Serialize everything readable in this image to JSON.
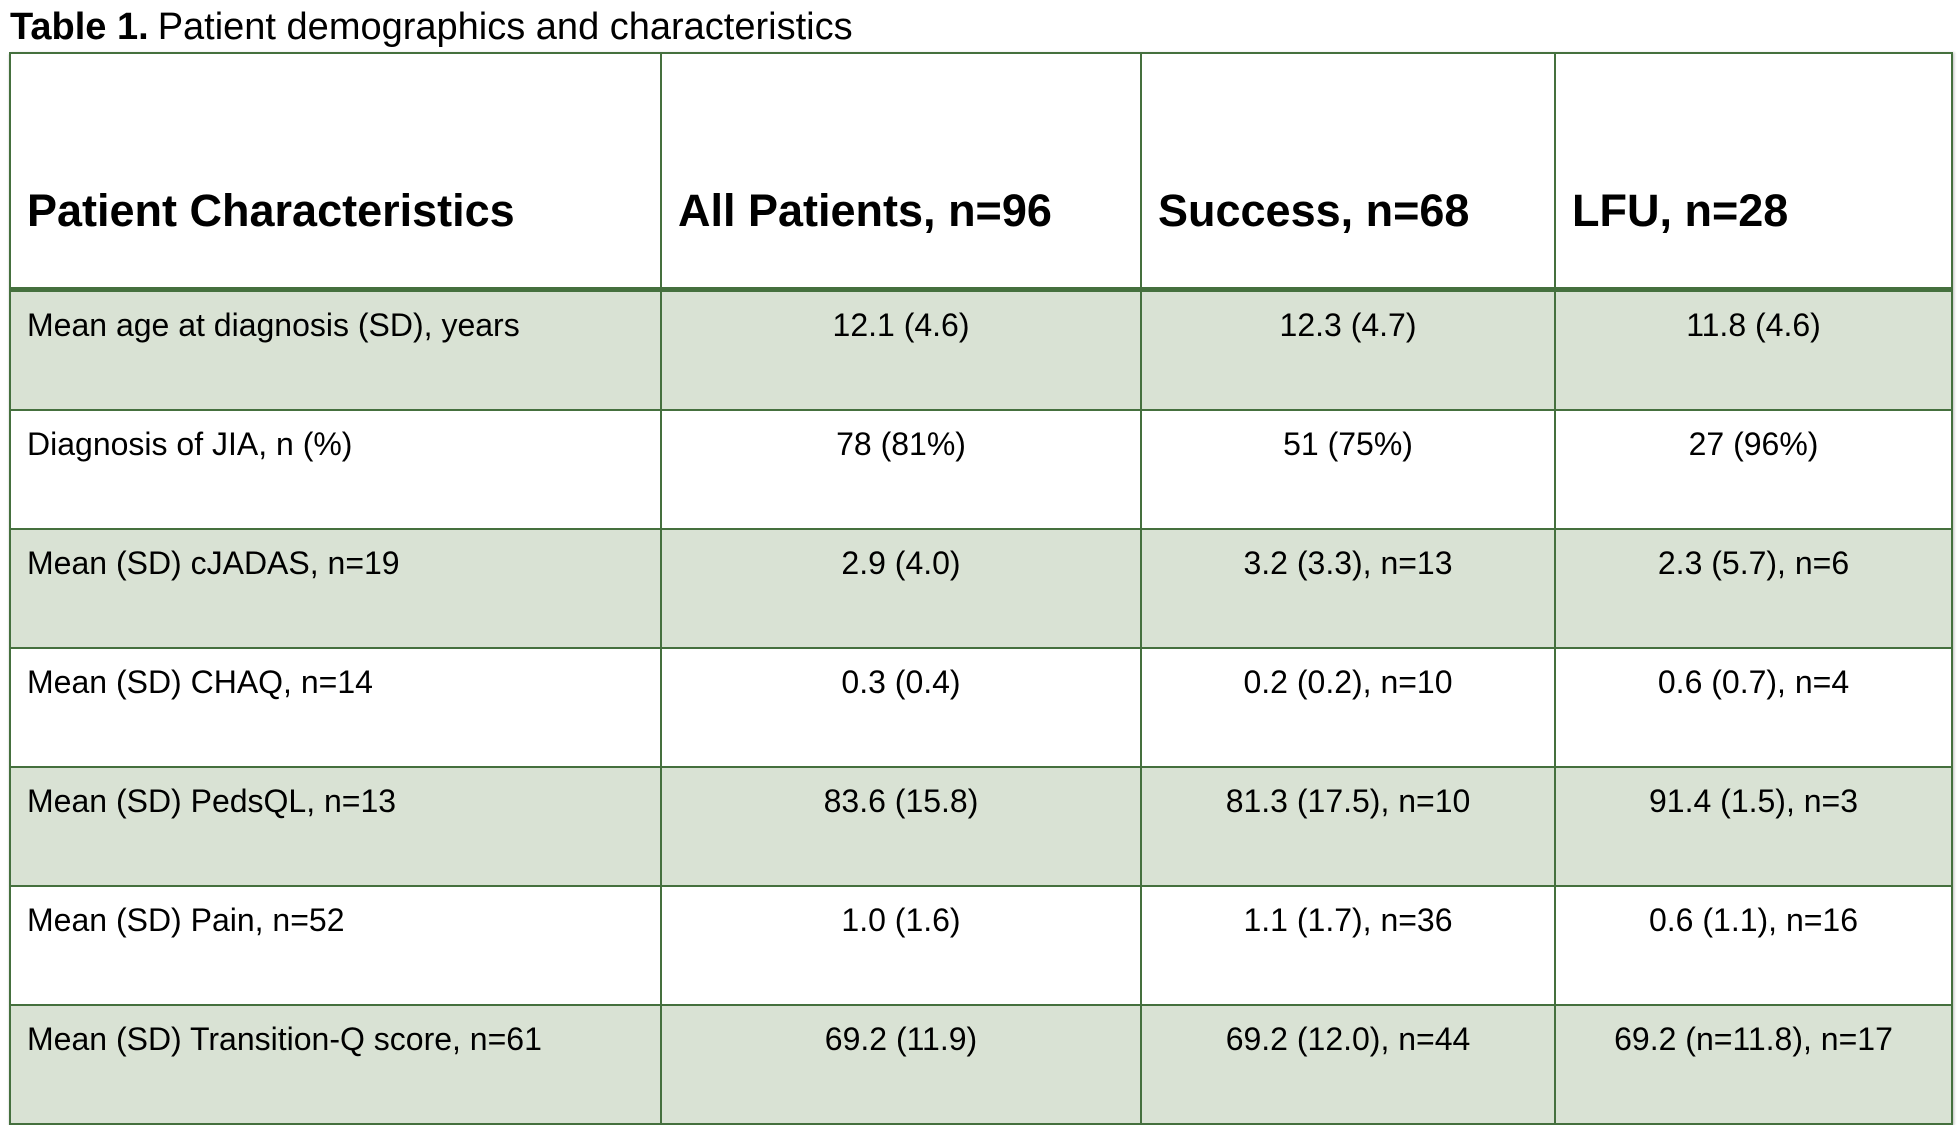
{
  "caption": {
    "prefix": "Table 1.",
    "text": "Patient demographics and characteristics"
  },
  "table": {
    "columns": [
      {
        "label": "Patient Characteristics"
      },
      {
        "label": "All Patients, n=96"
      },
      {
        "label": "Success, n=68"
      },
      {
        "label": "LFU, n=28"
      }
    ],
    "rows": [
      {
        "label": "Mean age at diagnosis (SD), years",
        "all": "12.1 (4.6)",
        "success": "12.3 (4.7)",
        "lfu": "11.8 (4.6)",
        "shaded": true
      },
      {
        "label": "Diagnosis of JIA, n (%)",
        "all": "78 (81%)",
        "success": "51 (75%)",
        "lfu": "27 (96%)",
        "shaded": false
      },
      {
        "label": "Mean (SD) cJADAS, n=19",
        "all": "2.9 (4.0)",
        "success": "3.2 (3.3), n=13",
        "lfu": "2.3 (5.7), n=6",
        "shaded": true
      },
      {
        "label": "Mean (SD) CHAQ, n=14",
        "all": "0.3 (0.4)",
        "success": "0.2 (0.2), n=10",
        "lfu": "0.6 (0.7), n=4",
        "shaded": false
      },
      {
        "label": "Mean (SD) PedsQL, n=13",
        "all": "83.6 (15.8)",
        "success": "81.3 (17.5), n=10",
        "lfu": "91.4 (1.5), n=3",
        "shaded": true
      },
      {
        "label": "Mean (SD) Pain, n=52",
        "all": "1.0 (1.6)",
        "success": "1.1 (1.7), n=36",
        "lfu": "0.6 (1.1), n=16",
        "shaded": false
      },
      {
        "label": "Mean (SD) Transition-Q score, n=61",
        "all": "69.2 (11.9)",
        "success": "69.2 (12.0), n=44",
        "lfu": "69.2 (n=11.8), n=17",
        "shaded": true
      }
    ],
    "colors": {
      "border": "#45703e",
      "shaded_row": "#d9e2d4",
      "background": "#ffffff",
      "text": "#000000"
    }
  }
}
